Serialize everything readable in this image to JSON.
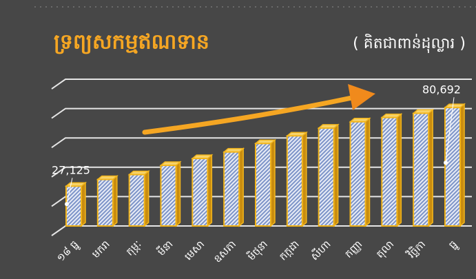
{
  "chart_data": {
    "type": "bar",
    "title": "ទ្រព្យសកម្មឥណទាន",
    "subtitle": "( គិតជាពាន់ដុល្លារ )",
    "categories": [
      "១៨ ធ្នូ",
      "មករា",
      "កុម្ភៈ",
      "មីនា",
      "មេសា",
      "ឧសភា",
      "មិថុនា",
      "កក្កដា",
      "សីហា",
      "កញ្ញា",
      "តុលា",
      "វិច្ឆិកា",
      "ធ្នូ"
    ],
    "values": [
      27125,
      31700,
      35000,
      41300,
      46000,
      50400,
      56200,
      61400,
      66700,
      71000,
      73900,
      76800,
      80692
    ],
    "value_labels": [
      "27,125",
      null,
      null,
      null,
      null,
      null,
      null,
      null,
      null,
      null,
      null,
      null,
      "80,692"
    ],
    "color": "#f2b51c",
    "ylim": [
      0,
      100000
    ],
    "yticks": [
      0,
      20000,
      40000,
      60000,
      80000,
      100000
    ],
    "grid": true
  }
}
